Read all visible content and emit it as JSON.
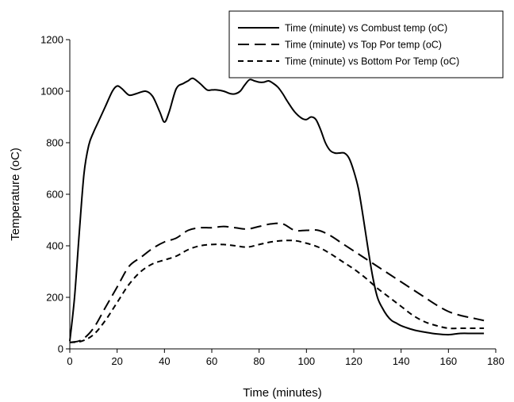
{
  "chart_data": {
    "type": "line",
    "title": "",
    "xlabel": "Time (minutes)",
    "ylabel": "Temperature (oC)",
    "xlim": [
      0,
      180
    ],
    "ylim": [
      0,
      1200
    ],
    "xticks": [
      0,
      20,
      40,
      60,
      80,
      100,
      120,
      140,
      160,
      180
    ],
    "yticks": [
      0,
      200,
      400,
      600,
      800,
      1000,
      1200
    ],
    "grid": false,
    "legend_position": "top-right",
    "series": [
      {
        "name": "Time (minute) vs Combust temp (oC)",
        "dash": "solid",
        "color": "#000000",
        "x": [
          0,
          2,
          4,
          6,
          8,
          10,
          12,
          15,
          18,
          20,
          22,
          25,
          28,
          32,
          35,
          38,
          40,
          42,
          45,
          48,
          50,
          52,
          55,
          58,
          60,
          62,
          65,
          68,
          70,
          72,
          74,
          76,
          78,
          80,
          82,
          84,
          86,
          88,
          90,
          92,
          95,
          98,
          100,
          102,
          104,
          106,
          108,
          110,
          112,
          114,
          116,
          118,
          120,
          122,
          124,
          126,
          128,
          130,
          132,
          134,
          136,
          138,
          140,
          143,
          146,
          150,
          155,
          160,
          165,
          170,
          175
        ],
        "y": [
          30,
          200,
          450,
          680,
          790,
          840,
          880,
          940,
          1000,
          1020,
          1010,
          985,
          990,
          1000,
          980,
          920,
          880,
          920,
          1010,
          1030,
          1040,
          1050,
          1030,
          1005,
          1005,
          1005,
          1000,
          990,
          990,
          1000,
          1025,
          1045,
          1040,
          1035,
          1035,
          1040,
          1030,
          1015,
          990,
          960,
          920,
          895,
          890,
          900,
          890,
          850,
          800,
          770,
          760,
          760,
          760,
          740,
          690,
          620,
          510,
          390,
          280,
          200,
          160,
          130,
          110,
          100,
          90,
          80,
          72,
          65,
          58,
          55,
          60,
          60,
          60
        ]
      },
      {
        "name": "Time (minute) vs Top Por temp (oC)",
        "dash": "long-dash",
        "color": "#000000",
        "x": [
          0,
          5,
          10,
          15,
          20,
          25,
          30,
          35,
          40,
          45,
          50,
          55,
          60,
          65,
          70,
          75,
          80,
          85,
          90,
          95,
          100,
          105,
          110,
          115,
          120,
          125,
          130,
          135,
          140,
          145,
          150,
          155,
          160,
          165,
          170,
          175
        ],
        "y": [
          25,
          35,
          80,
          160,
          240,
          320,
          355,
          390,
          415,
          430,
          460,
          470,
          470,
          475,
          470,
          465,
          475,
          485,
          485,
          460,
          460,
          460,
          440,
          410,
          380,
          350,
          320,
          290,
          260,
          230,
          200,
          170,
          145,
          130,
          120,
          110
        ]
      },
      {
        "name": "Time (minute) vs Bottom Por Temp (oC)",
        "dash": "short-dash",
        "color": "#000000",
        "x": [
          0,
          5,
          10,
          15,
          20,
          25,
          30,
          35,
          40,
          45,
          50,
          55,
          60,
          65,
          70,
          75,
          80,
          85,
          90,
          95,
          100,
          105,
          110,
          115,
          120,
          125,
          130,
          135,
          140,
          145,
          150,
          155,
          160,
          165,
          170,
          175
        ],
        "y": [
          25,
          30,
          55,
          110,
          180,
          250,
          300,
          330,
          345,
          360,
          385,
          400,
          405,
          405,
          400,
          395,
          405,
          415,
          420,
          420,
          410,
          395,
          370,
          340,
          310,
          275,
          235,
          200,
          165,
          130,
          105,
          90,
          80,
          80,
          80,
          80
        ]
      }
    ]
  }
}
